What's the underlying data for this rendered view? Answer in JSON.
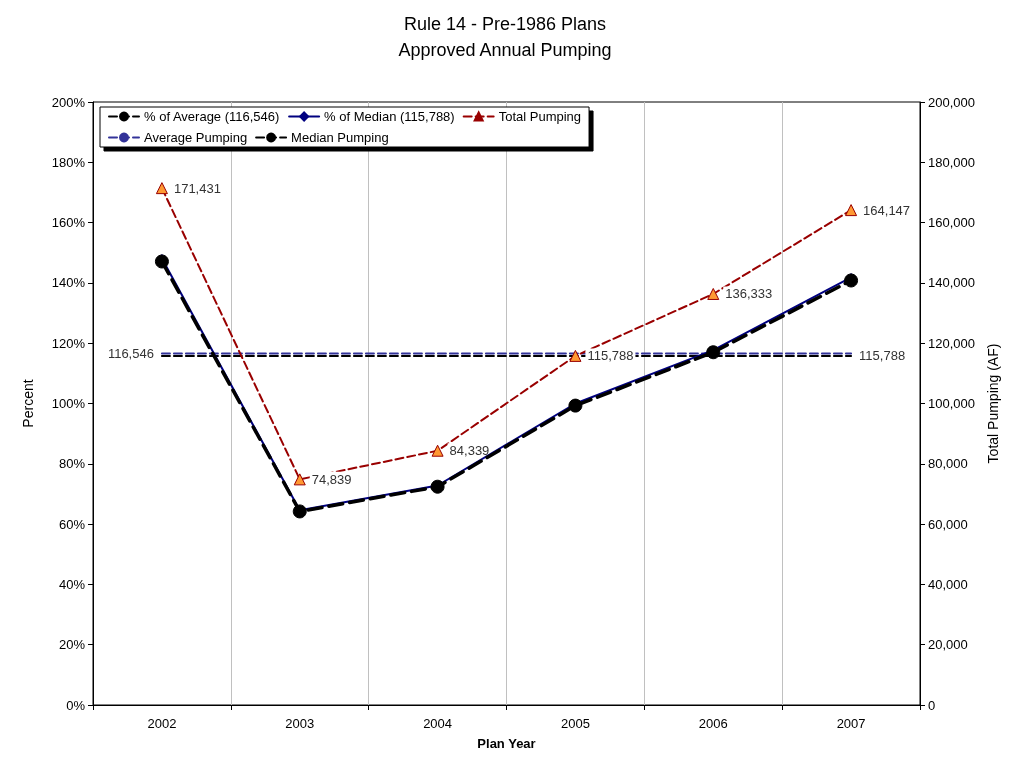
{
  "chart_data": {
    "type": "line",
    "title": "Rule 14 - Pre-1986 Plans",
    "subtitle": "Approved Annual Pumping",
    "xlabel": "Plan Year",
    "ylabel": "Percent",
    "y2label": "Total Pumping (AF)",
    "categories": [
      "2002",
      "2003",
      "2004",
      "2005",
      "2006",
      "2007"
    ],
    "series": [
      {
        "name": "% of Average (116,546)",
        "color": "#000000",
        "marker": "circle",
        "line_style": "dashed",
        "values": [
          147.1,
          64.2,
          72.4,
          99.3,
          117.0,
          140.8
        ]
      },
      {
        "name": "% of Median (115,788)",
        "color": "#000080",
        "marker": "diamond",
        "line_style": "solid",
        "values": [
          148.1,
          64.6,
          72.8,
          100.0,
          117.7,
          141.8
        ]
      },
      {
        "name": "Total Pumping",
        "color": "#990000",
        "colors": [
          "#ff9933",
          "#ff9933",
          "#ff9933",
          "#ff9933",
          "#ff9933",
          "#ff9933"
        ],
        "marker": "triangle",
        "line_style": "dashed",
        "axis": "y2",
        "values": [
          171431,
          74839,
          84339,
          115788,
          136333,
          164147
        ],
        "value_labels": [
          "171,431",
          "74,839",
          "84,339",
          "115,788",
          "136,333",
          "164,147"
        ]
      },
      {
        "name": "Average Pumping",
        "color": "#333399",
        "marker": "none",
        "line_style": "dashed",
        "axis": "y2",
        "values": [
          116546,
          116546,
          116546,
          116546,
          116546,
          116546
        ],
        "value_labels": [
          "116,546",
          null,
          null,
          null,
          null,
          null
        ]
      },
      {
        "name": "Median Pumping",
        "color": "#000000",
        "marker": "none",
        "line_style": "dashed",
        "axis": "y2",
        "values": [
          115788,
          115788,
          115788,
          115788,
          115788,
          115788
        ],
        "value_labels": [
          null,
          null,
          null,
          null,
          null,
          "115,788"
        ]
      }
    ],
    "ylim": [
      0,
      200
    ],
    "yticks": [
      {
        "value": 0,
        "label": "0%"
      },
      {
        "value": 20,
        "label": "20%"
      },
      {
        "value": 40,
        "label": "40%"
      },
      {
        "value": 60,
        "label": "60%"
      },
      {
        "value": 80,
        "label": "80%"
      },
      {
        "value": 100,
        "label": "100%"
      },
      {
        "value": 120,
        "label": "120%"
      },
      {
        "value": 140,
        "label": "140%"
      },
      {
        "value": 160,
        "label": "160%"
      },
      {
        "value": 180,
        "label": "180%"
      },
      {
        "value": 200,
        "label": "200%"
      }
    ],
    "y2lim": [
      0,
      200000
    ],
    "y2ticks": [
      0,
      {
        "value": 20000,
        "label": "20,000"
      },
      {
        "value": 40000,
        "label": "40,000"
      },
      {
        "value": 60000,
        "label": "60,000"
      },
      {
        "value": 80000,
        "label": "80,000"
      },
      {
        "value": 100000,
        "label": "100,000"
      },
      {
        "value": 120000,
        "label": "120,000"
      },
      {
        "value": 140000,
        "label": "140,000"
      },
      {
        "value": 160000,
        "label": "160,000"
      },
      {
        "value": 180000,
        "label": "180,000"
      },
      {
        "value": 200000,
        "label": "200,000"
      }
    ],
    "grid": "x",
    "legend": "top left"
  }
}
